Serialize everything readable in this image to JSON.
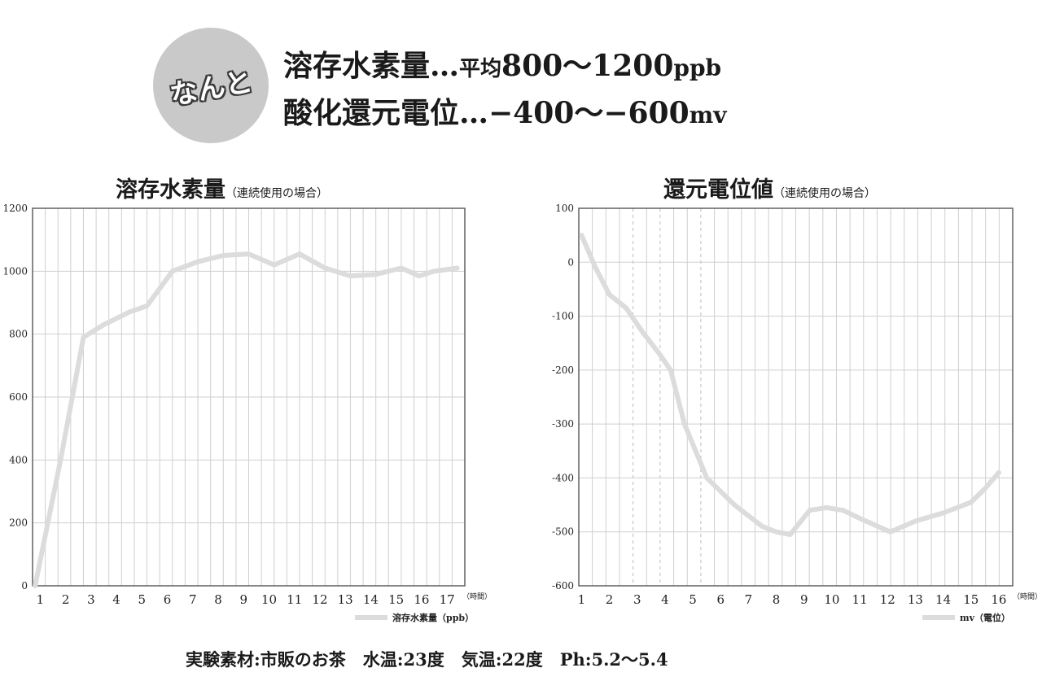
{
  "badge": {
    "text": "なんと"
  },
  "headline": {
    "line1": {
      "label": "溶存水素量",
      "sep": "…",
      "avg": "平均",
      "value": "800〜1200",
      "unit": "ppb"
    },
    "line2": {
      "label": "酸化還元電位",
      "sep": "…",
      "value": "−400〜−600",
      "unit": "mv"
    }
  },
  "footer": {
    "text": "実験素材:市販のお茶　水温:23度　気温:22度　Ph:5.2〜5.4"
  },
  "colors": {
    "line": "#dcdcdc",
    "grid_solid": "#cfcfcf",
    "grid_dashed": "#bdbdbd",
    "frame": "#555555",
    "badge": "#c9c9c9"
  },
  "chart_data": [
    {
      "type": "line",
      "title": "溶存水素量",
      "title_note": "（連続使用の場合）",
      "x_unit": "（時間）",
      "legend": "溶存水素量（ppb）",
      "x_ticks": [
        "1",
        "2",
        "3",
        "4",
        "5",
        "6",
        "7",
        "8",
        "9",
        "10",
        "11",
        "12",
        "13",
        "14",
        "15",
        "16",
        "17"
      ],
      "y_ticks": [
        "0",
        "200",
        "400",
        "600",
        "800",
        "1000",
        "1200"
      ],
      "ylim": [
        0,
        1200
      ],
      "xlim": [
        0.7,
        17.7
      ],
      "grid": true,
      "series": [
        {
          "name": "溶存水素量（ppb）",
          "x": [
            0.8,
            1.8,
            2.7,
            3.5,
            4.5,
            5.2,
            6.2,
            7.2,
            8.2,
            9.2,
            10.2,
            11.2,
            12.2,
            13.2,
            14.2,
            15.2,
            15.9,
            16.5,
            17.4
          ],
          "y": [
            0,
            400,
            790,
            830,
            870,
            890,
            1000,
            1030,
            1050,
            1055,
            1020,
            1055,
            1010,
            985,
            990,
            1010,
            985,
            1000,
            1010
          ]
        }
      ]
    },
    {
      "type": "line",
      "title": "還元電位値",
      "title_note": "（連続使用の場合）",
      "x_unit": "（時間）",
      "legend": "mv（電位）",
      "x_ticks": [
        "1",
        "2",
        "3",
        "4",
        "5",
        "6",
        "7",
        "8",
        "9",
        "10",
        "11",
        "12",
        "13",
        "14",
        "15",
        "16"
      ],
      "y_ticks": [
        "100",
        "0",
        "-100",
        "-200",
        "-300",
        "-400",
        "-500",
        "-600"
      ],
      "ylim": [
        -600,
        100
      ],
      "xlim": [
        0.9,
        16.5
      ],
      "grid": true,
      "series": [
        {
          "name": "mv（電位）",
          "x": [
            1.0,
            1.5,
            2.0,
            2.6,
            3.2,
            3.8,
            4.2,
            4.7,
            5.5,
            6.5,
            7.5,
            8.0,
            8.5,
            9.2,
            9.8,
            10.4,
            11.0,
            12.1,
            13.0,
            14.0,
            15.0,
            15.5,
            16.0
          ],
          "y": [
            50,
            -10,
            -60,
            -85,
            -130,
            -170,
            -200,
            -300,
            -400,
            -450,
            -490,
            -500,
            -505,
            -460,
            -455,
            -460,
            -475,
            -500,
            -480,
            -465,
            -445,
            -420,
            -390
          ]
        }
      ]
    }
  ]
}
